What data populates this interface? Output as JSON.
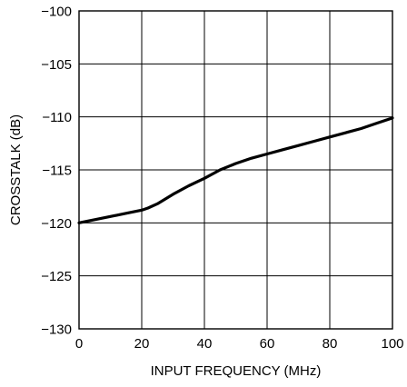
{
  "chart_data": {
    "type": "line",
    "title": "",
    "xlabel": "INPUT FREQUENCY (MHz)",
    "ylabel": "CROSSTALK (dB)",
    "xlim": [
      0,
      100
    ],
    "ylim": [
      -130,
      -100
    ],
    "x_ticks": [
      0,
      20,
      40,
      60,
      80,
      100
    ],
    "y_ticks": [
      -100,
      -105,
      -110,
      -115,
      -120,
      -125,
      -130
    ],
    "x_tick_labels": [
      "0",
      "20",
      "40",
      "60",
      "80",
      "100"
    ],
    "y_tick_labels": [
      "−100",
      "−105",
      "−110",
      "−115",
      "−120",
      "−125",
      "−130"
    ],
    "grid": true,
    "line_color": "#000000",
    "series": [
      {
        "x": [
          0,
          5,
          10,
          15,
          20,
          22,
          25,
          30,
          35,
          40,
          45,
          50,
          55,
          60,
          65,
          70,
          75,
          80,
          85,
          90,
          95,
          100
        ],
        "y": [
          -120,
          -119.7,
          -119.4,
          -119.1,
          -118.8,
          -118.6,
          -118.2,
          -117.3,
          -116.5,
          -115.8,
          -115.0,
          -114.4,
          -113.9,
          -113.5,
          -113.1,
          -112.7,
          -112.3,
          -111.9,
          -111.5,
          -111.1,
          -110.6,
          -110.1
        ]
      }
    ]
  }
}
